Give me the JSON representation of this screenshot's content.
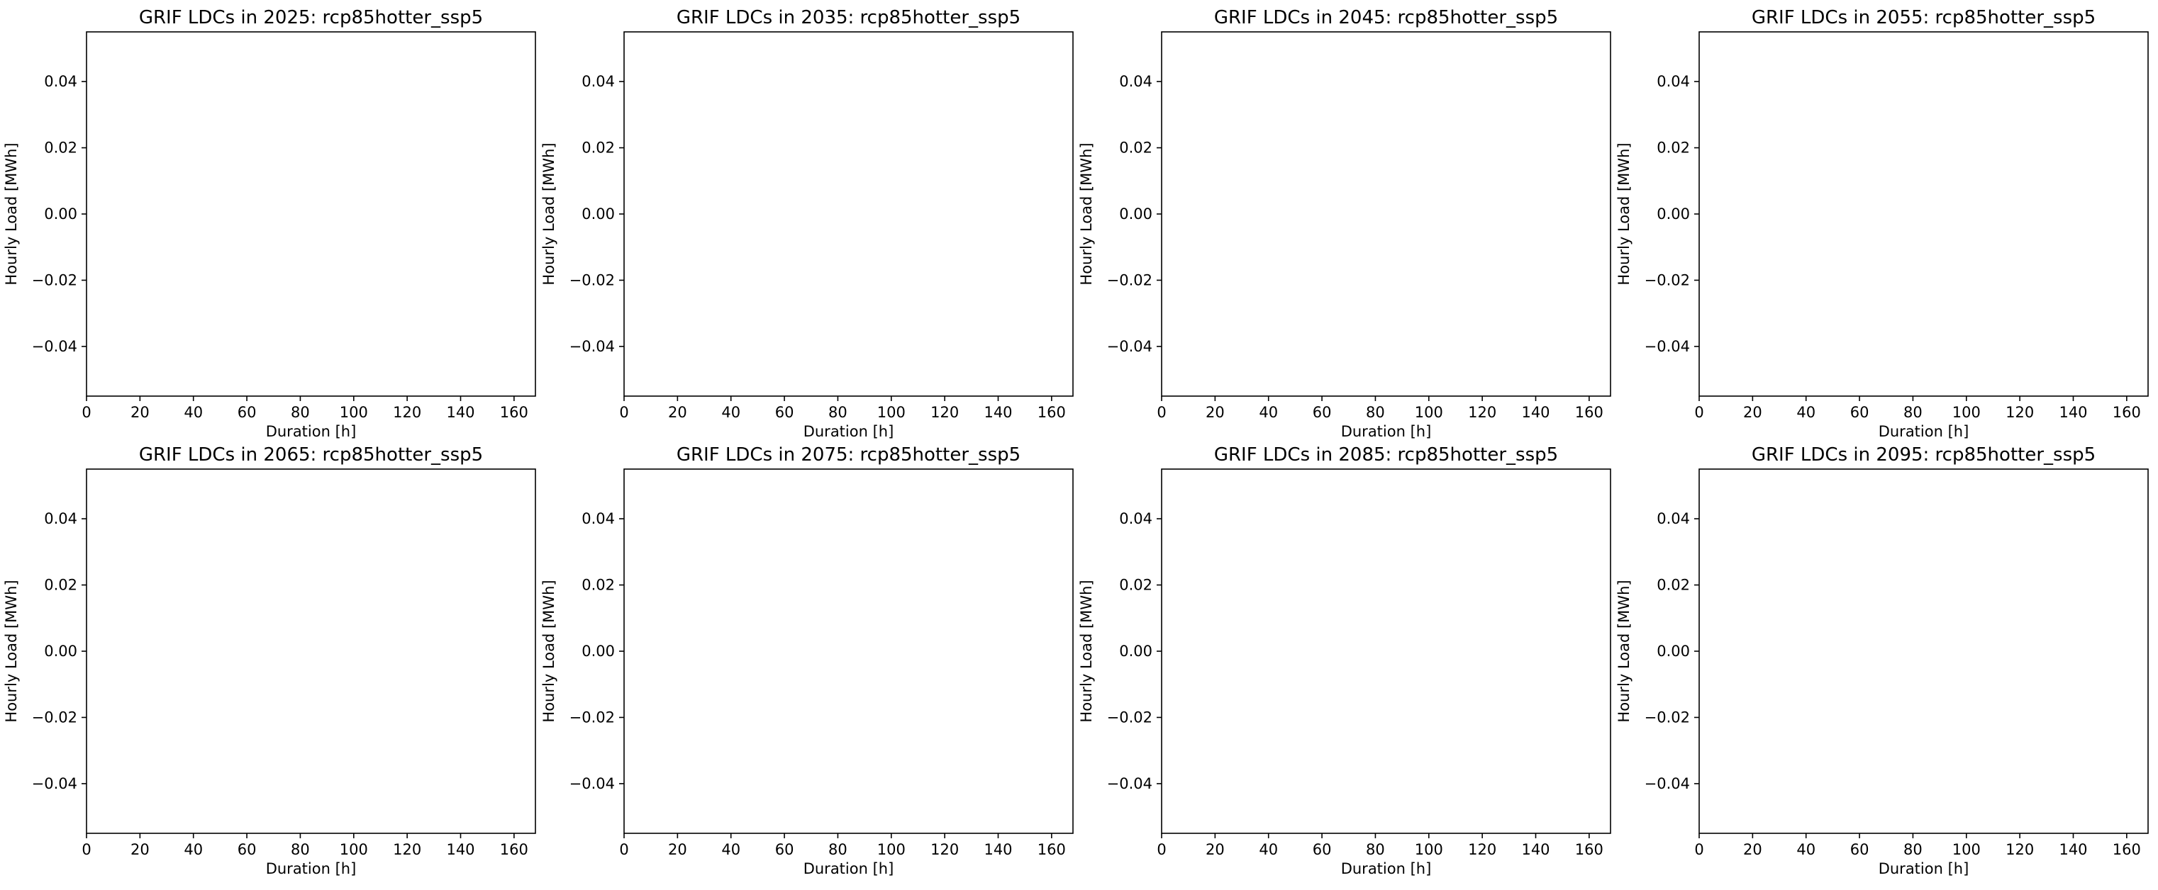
{
  "chart_data": [
    {
      "type": "line",
      "title": "GRIF LDCs in 2025: rcp85hotter_ssp5",
      "xlabel": "Duration [h]",
      "ylabel": "Hourly Load [MWh]",
      "xlim": [
        0,
        168
      ],
      "ylim": [
        -0.055,
        0.055
      ],
      "xticks": [
        0,
        20,
        40,
        60,
        80,
        100,
        120,
        140,
        160
      ],
      "yticks": [
        0.04,
        0.02,
        0.0,
        -0.02,
        -0.04
      ],
      "xtick_labels": [
        "0",
        "20",
        "40",
        "60",
        "80",
        "100",
        "120",
        "140",
        "160"
      ],
      "ytick_labels": [
        "0.04",
        "0.02",
        "0.00",
        "−0.02",
        "−0.04"
      ],
      "series": [],
      "grid": false
    },
    {
      "type": "line",
      "title": "GRIF LDCs in 2035: rcp85hotter_ssp5",
      "xlabel": "Duration [h]",
      "ylabel": "Hourly Load [MWh]",
      "xlim": [
        0,
        168
      ],
      "ylim": [
        -0.055,
        0.055
      ],
      "xticks": [
        0,
        20,
        40,
        60,
        80,
        100,
        120,
        140,
        160
      ],
      "yticks": [
        0.04,
        0.02,
        0.0,
        -0.02,
        -0.04
      ],
      "xtick_labels": [
        "0",
        "20",
        "40",
        "60",
        "80",
        "100",
        "120",
        "140",
        "160"
      ],
      "ytick_labels": [
        "0.04",
        "0.02",
        "0.00",
        "−0.02",
        "−0.04"
      ],
      "series": [],
      "grid": false
    },
    {
      "type": "line",
      "title": "GRIF LDCs in 2045: rcp85hotter_ssp5",
      "xlabel": "Duration [h]",
      "ylabel": "Hourly Load [MWh]",
      "xlim": [
        0,
        168
      ],
      "ylim": [
        -0.055,
        0.055
      ],
      "xticks": [
        0,
        20,
        40,
        60,
        80,
        100,
        120,
        140,
        160
      ],
      "yticks": [
        0.04,
        0.02,
        0.0,
        -0.02,
        -0.04
      ],
      "xtick_labels": [
        "0",
        "20",
        "40",
        "60",
        "80",
        "100",
        "120",
        "140",
        "160"
      ],
      "ytick_labels": [
        "0.04",
        "0.02",
        "0.00",
        "−0.02",
        "−0.04"
      ],
      "series": [],
      "grid": false
    },
    {
      "type": "line",
      "title": "GRIF LDCs in 2055: rcp85hotter_ssp5",
      "xlabel": "Duration [h]",
      "ylabel": "Hourly Load [MWh]",
      "xlim": [
        0,
        168
      ],
      "ylim": [
        -0.055,
        0.055
      ],
      "xticks": [
        0,
        20,
        40,
        60,
        80,
        100,
        120,
        140,
        160
      ],
      "yticks": [
        0.04,
        0.02,
        0.0,
        -0.02,
        -0.04
      ],
      "xtick_labels": [
        "0",
        "20",
        "40",
        "60",
        "80",
        "100",
        "120",
        "140",
        "160"
      ],
      "ytick_labels": [
        "0.04",
        "0.02",
        "0.00",
        "−0.02",
        "−0.04"
      ],
      "series": [],
      "grid": false
    },
    {
      "type": "line",
      "title": "GRIF LDCs in 2065: rcp85hotter_ssp5",
      "xlabel": "Duration [h]",
      "ylabel": "Hourly Load [MWh]",
      "xlim": [
        0,
        168
      ],
      "ylim": [
        -0.055,
        0.055
      ],
      "xticks": [
        0,
        20,
        40,
        60,
        80,
        100,
        120,
        140,
        160
      ],
      "yticks": [
        0.04,
        0.02,
        0.0,
        -0.02,
        -0.04
      ],
      "xtick_labels": [
        "0",
        "20",
        "40",
        "60",
        "80",
        "100",
        "120",
        "140",
        "160"
      ],
      "ytick_labels": [
        "0.04",
        "0.02",
        "0.00",
        "−0.02",
        "−0.04"
      ],
      "series": [],
      "grid": false
    },
    {
      "type": "line",
      "title": "GRIF LDCs in 2075: rcp85hotter_ssp5",
      "xlabel": "Duration [h]",
      "ylabel": "Hourly Load [MWh]",
      "xlim": [
        0,
        168
      ],
      "ylim": [
        -0.055,
        0.055
      ],
      "xticks": [
        0,
        20,
        40,
        60,
        80,
        100,
        120,
        140,
        160
      ],
      "yticks": [
        0.04,
        0.02,
        0.0,
        -0.02,
        -0.04
      ],
      "xtick_labels": [
        "0",
        "20",
        "40",
        "60",
        "80",
        "100",
        "120",
        "140",
        "160"
      ],
      "ytick_labels": [
        "0.04",
        "0.02",
        "0.00",
        "−0.02",
        "−0.04"
      ],
      "series": [],
      "grid": false
    },
    {
      "type": "line",
      "title": "GRIF LDCs in 2085: rcp85hotter_ssp5",
      "xlabel": "Duration [h]",
      "ylabel": "Hourly Load [MWh]",
      "xlim": [
        0,
        168
      ],
      "ylim": [
        -0.055,
        0.055
      ],
      "xticks": [
        0,
        20,
        40,
        60,
        80,
        100,
        120,
        140,
        160
      ],
      "yticks": [
        0.04,
        0.02,
        0.0,
        -0.02,
        -0.04
      ],
      "xtick_labels": [
        "0",
        "20",
        "40",
        "60",
        "80",
        "100",
        "120",
        "140",
        "160"
      ],
      "ytick_labels": [
        "0.04",
        "0.02",
        "0.00",
        "−0.02",
        "−0.04"
      ],
      "series": [],
      "grid": false
    },
    {
      "type": "line",
      "title": "GRIF LDCs in 2095: rcp85hotter_ssp5",
      "xlabel": "Duration [h]",
      "ylabel": "Hourly Load [MWh]",
      "xlim": [
        0,
        168
      ],
      "ylim": [
        -0.055,
        0.055
      ],
      "xticks": [
        0,
        20,
        40,
        60,
        80,
        100,
        120,
        140,
        160
      ],
      "yticks": [
        0.04,
        0.02,
        0.0,
        -0.02,
        -0.04
      ],
      "xtick_labels": [
        "0",
        "20",
        "40",
        "60",
        "80",
        "100",
        "120",
        "140",
        "160"
      ],
      "ytick_labels": [
        "0.04",
        "0.02",
        "0.00",
        "−0.02",
        "−0.04"
      ],
      "series": [],
      "grid": false
    }
  ]
}
